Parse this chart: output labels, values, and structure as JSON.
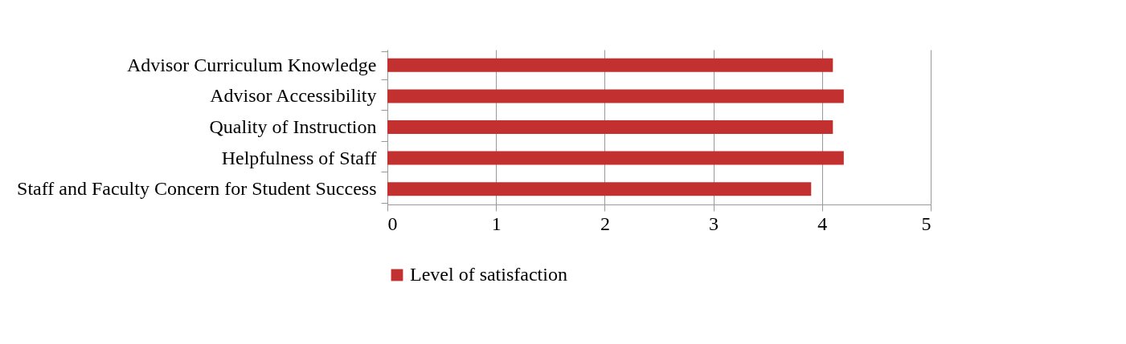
{
  "chart_data": {
    "type": "bar",
    "orientation": "horizontal",
    "categories": [
      "Advisor Curriculum Knowledge",
      "Advisor Accessibility",
      "Quality of Instruction",
      "Helpfulness of Staff",
      "Staff and Faculty Concern for Student Success"
    ],
    "series": [
      {
        "name": "Level of satisfaction",
        "color": "#c33030",
        "values": [
          4.1,
          4.2,
          4.1,
          4.2,
          3.9
        ]
      }
    ],
    "xlim": [
      0,
      5
    ],
    "xticks": [
      0,
      1,
      2,
      3,
      4,
      5
    ],
    "grid": "x",
    "legend": "bottom"
  }
}
